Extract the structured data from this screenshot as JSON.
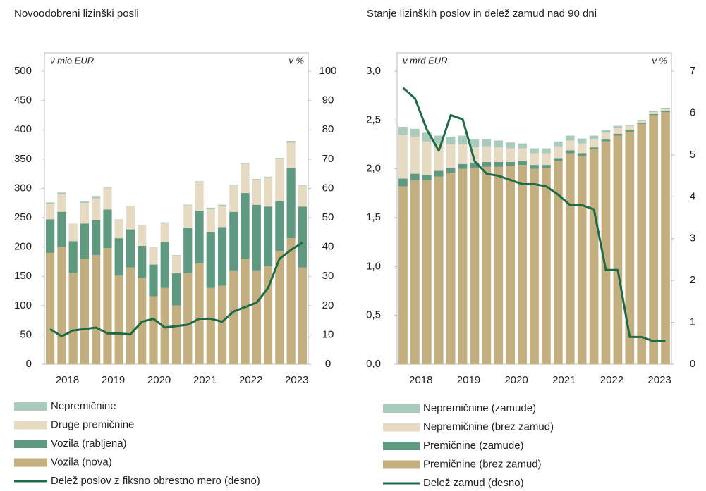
{
  "chart_data": [
    {
      "type": "bar",
      "title": "Novoodobreni lizinški posli",
      "ylabel": "v mio EUR",
      "y2label": "v %",
      "categories": [
        null,
        "2018",
        null,
        null,
        null,
        "2019",
        null,
        null,
        null,
        "2020",
        null,
        null,
        null,
        "2021",
        null,
        null,
        null,
        "2022",
        null,
        null,
        null,
        "2023",
        null
      ],
      "ylim": [
        0,
        500
      ],
      "yticks": [
        0,
        50,
        100,
        150,
        200,
        250,
        300,
        350,
        400,
        450,
        500
      ],
      "y2lim": [
        0,
        100
      ],
      "y2ticks": [
        0,
        10,
        20,
        30,
        40,
        50,
        60,
        70,
        80,
        90,
        100
      ],
      "series": [
        {
          "name": "Vozila (nova)",
          "color": "#c2ae7e",
          "values": [
            190,
            200,
            155,
            180,
            186,
            198,
            151,
            165,
            147,
            116,
            130,
            100,
            155,
            172,
            130,
            134,
            160,
            180,
            160,
            167,
            193,
            215,
            165
          ]
        },
        {
          "name": "Vozila (rabljena)",
          "color": "#5f9a80",
          "values": [
            57,
            60,
            55,
            60,
            60,
            66,
            64,
            65,
            55,
            54,
            78,
            55,
            78,
            90,
            95,
            100,
            100,
            112,
            112,
            102,
            85,
            120,
            104
          ]
        },
        {
          "name": "Druge premičnine",
          "color": "#e6dac2",
          "values": [
            27,
            30,
            30,
            35,
            37,
            37,
            30,
            40,
            35,
            30,
            32,
            30,
            38,
            48,
            40,
            36,
            45,
            50,
            43,
            50,
            73,
            43,
            35
          ]
        },
        {
          "name": "Nepremičnine",
          "color": "#a9cbbc",
          "values": [
            2,
            3,
            0,
            3,
            4,
            1,
            2,
            0,
            1,
            0,
            2,
            1,
            1,
            2,
            2,
            2,
            1,
            1,
            1,
            1,
            1,
            3,
            1
          ]
        },
        {
          "name": "Delež poslov z fiksno obrestno mero (desno)",
          "type": "line",
          "axis": "y2",
          "color": "#1e6b48",
          "values": [
            12,
            9.5,
            11.5,
            12,
            12.5,
            10.5,
            10.5,
            10.2,
            14.5,
            15.5,
            12.5,
            13,
            13.5,
            15.5,
            15.5,
            14.5,
            18,
            19.5,
            21,
            26,
            36,
            39,
            41.5
          ]
        }
      ]
    },
    {
      "type": "bar",
      "title": "Stanje lizinških poslov in delež zamud nad 90 dni",
      "ylabel": "v mrd EUR",
      "y2label": "v %",
      "categories": [
        null,
        "2018",
        null,
        null,
        null,
        "2019",
        null,
        null,
        null,
        "2020",
        null,
        null,
        null,
        "2021",
        null,
        null,
        null,
        "2022",
        null,
        null,
        null,
        "2023",
        null
      ],
      "ylim": [
        0,
        3
      ],
      "yticks": [
        {
          "value": 0,
          "label": "0,0"
        },
        {
          "value": 0.5,
          "label": "0,5"
        },
        {
          "value": 1,
          "label": "1,0"
        },
        {
          "value": 1.5,
          "label": "1,5"
        },
        {
          "value": 2,
          "label": "2,0"
        },
        {
          "value": 2.5,
          "label": "2,5"
        },
        {
          "value": 3,
          "label": "3,0"
        }
      ],
      "y2lim": [
        0,
        7
      ],
      "y2ticks": [
        0,
        1,
        2,
        3,
        4,
        5,
        6,
        7
      ],
      "series": [
        {
          "name": "Premičnine (brez zamud)",
          "color": "#c2ae7e",
          "values": [
            1.82,
            1.88,
            1.88,
            1.92,
            1.96,
            2.0,
            2.01,
            2.02,
            2.02,
            2.03,
            2.04,
            2.0,
            2.01,
            2.08,
            2.16,
            2.13,
            2.2,
            2.28,
            2.34,
            2.38,
            2.46,
            2.55,
            2.58
          ]
        },
        {
          "name": "Premičnine (zamude)",
          "color": "#5f9a80",
          "values": [
            0.08,
            0.07,
            0.06,
            0.06,
            0.05,
            0.05,
            0.05,
            0.05,
            0.05,
            0.04,
            0.04,
            0.04,
            0.03,
            0.03,
            0.03,
            0.03,
            0.02,
            0.02,
            0.02,
            0.02,
            0.01,
            0.01,
            0.01
          ]
        },
        {
          "name": "Nepremičnine (brez zamud)",
          "color": "#e6dac2",
          "values": [
            0.45,
            0.38,
            0.34,
            0.28,
            0.24,
            0.2,
            0.16,
            0.16,
            0.15,
            0.14,
            0.13,
            0.12,
            0.12,
            0.12,
            0.1,
            0.1,
            0.08,
            0.07,
            0.06,
            0.04,
            0.02,
            0.02,
            0.02
          ]
        },
        {
          "name": "Nepremičnine (zamude)",
          "color": "#a9cbbc",
          "values": [
            0.08,
            0.08,
            0.09,
            0.08,
            0.08,
            0.09,
            0.08,
            0.07,
            0.07,
            0.06,
            0.05,
            0.05,
            0.05,
            0.05,
            0.05,
            0.05,
            0.04,
            0.03,
            0.02,
            0.01,
            0.01,
            0.01,
            0.01
          ]
        },
        {
          "name": "Delež zamud (desno)",
          "type": "line",
          "axis": "y2",
          "color": "#1e6b48",
          "values": [
            6.6,
            6.35,
            5.6,
            5.1,
            5.95,
            5.85,
            4.85,
            4.55,
            4.5,
            4.4,
            4.3,
            4.3,
            4.25,
            4.05,
            3.8,
            3.8,
            3.7,
            2.25,
            2.25,
            0.65,
            0.65,
            0.55,
            0.55
          ]
        }
      ]
    }
  ]
}
